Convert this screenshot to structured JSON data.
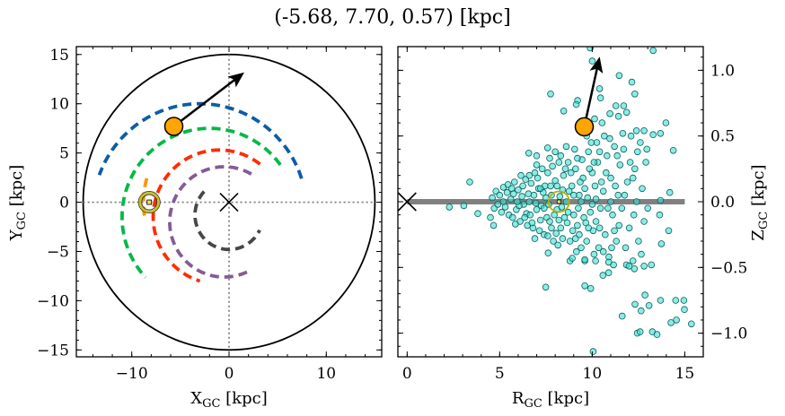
{
  "chart_data": [
    {
      "type": "line",
      "panel": "left",
      "title": "(-5.68, 7.70, 0.57) [kpc]",
      "xlabel": {
        "main": "X",
        "sub": "GC",
        "unit": " [kpc]"
      },
      "ylabel": {
        "main": "Y",
        "sub": "GC",
        "unit": " [kpc]"
      },
      "xlim": [
        -15.7,
        15.7
      ],
      "ylim": [
        -15.7,
        15.8
      ],
      "xticks": [
        -10,
        0,
        10
      ],
      "xtick_labels": [
        "−10",
        "0",
        "10"
      ],
      "yticks": [
        15,
        10,
        5,
        0,
        -5,
        -10,
        -15
      ],
      "ytick_labels": [
        "15",
        "10",
        "5",
        "0",
        "−5",
        "−10",
        "−15"
      ],
      "grid": false,
      "boundary_circle_radius": 15,
      "galactic_center": [
        0,
        0
      ],
      "sun_position": [
        -8.2,
        0
      ],
      "object_position": [
        -5.68,
        7.7
      ],
      "velocity_arrow_tip": [
        1.2,
        12.9
      ],
      "orbits": [
        {
          "color": "#0C5DA5",
          "center": [
            -3,
            -1
          ],
          "radius": 11,
          "angle_start": 18,
          "angle_end": 160
        },
        {
          "color": "#00B945",
          "center": [
            -2,
            -1.5
          ],
          "radius": 9,
          "angle_start": 36,
          "angle_end": 223
        },
        {
          "color": "#FF2C00",
          "center": [
            -1,
            -1.5
          ],
          "radius": 6.8,
          "angle_start": 52,
          "angle_end": 253
        },
        {
          "color": "#845B97",
          "center": [
            -0.5,
            -2
          ],
          "radius": 5.6,
          "angle_start": 60,
          "angle_end": 300
        },
        {
          "color": "#474747",
          "center": [
            0,
            -1.3
          ],
          "radius": 3.5,
          "angle_start": 137,
          "angle_end": 334
        },
        {
          "color": "#FF9500",
          "center": [
            0,
            0
          ],
          "radius": 8.8,
          "angle_start": 164,
          "angle_end": 190
        }
      ]
    },
    {
      "type": "scatter",
      "panel": "right",
      "xlabel": {
        "main": "R",
        "sub": "GC",
        "unit": " [kpc]"
      },
      "ylabel": {
        "main": "Z",
        "sub": "GC",
        "unit": " [kpc]"
      },
      "xlim": [
        -0.5,
        16.0
      ],
      "ylim": [
        -1.18,
        1.18
      ],
      "xticks": [
        0,
        5,
        10,
        15
      ],
      "xtick_labels": [
        "0",
        "5",
        "10",
        "15"
      ],
      "yticks": [
        1.0,
        0.5,
        0.0,
        -0.5,
        -1.0
      ],
      "ytick_labels": [
        "1.0",
        "0.5",
        "0.0",
        "−0.5",
        "−1.0"
      ],
      "yaxis_side": "right",
      "grid": false,
      "disk_line": {
        "x": [
          0,
          15
        ],
        "y": 0,
        "color": "#808080"
      },
      "galactic_center": [
        0,
        0
      ],
      "sun_position": [
        8.2,
        0
      ],
      "object_position": [
        9.57,
        0.57
      ],
      "velocity_arrow_tip": [
        10.35,
        1.07
      ],
      "marker_color": "#40E0D0",
      "marker_edge": "#0B5F5F",
      "points": [
        [
          4.6,
          0.03
        ],
        [
          4.7,
          -0.05
        ],
        [
          4.8,
          0.08
        ],
        [
          4.9,
          -0.02
        ],
        [
          5.0,
          0.05
        ],
        [
          5.1,
          -0.08
        ],
        [
          5.2,
          0.11
        ],
        [
          5.3,
          -0.04
        ],
        [
          5.4,
          0.07
        ],
        [
          5.5,
          -0.1
        ],
        [
          4.5,
          -0.12
        ],
        [
          5.2,
          0.0
        ],
        [
          5.45,
          0.13
        ],
        [
          5.6,
          0.02
        ],
        [
          5.7,
          -0.12
        ],
        [
          5.8,
          0.15
        ],
        [
          5.9,
          -0.06
        ],
        [
          6.0,
          0.09
        ],
        [
          6.1,
          -0.15
        ],
        [
          6.2,
          0.04
        ],
        [
          6.3,
          -0.02
        ],
        [
          6.4,
          0.17
        ],
        [
          6.5,
          -0.18
        ],
        [
          5.65,
          0.1
        ],
        [
          5.85,
          -0.17
        ],
        [
          6.05,
          -0.03
        ],
        [
          6.25,
          0.12
        ],
        [
          6.45,
          -0.09
        ],
        [
          6.15,
          0.2
        ],
        [
          5.95,
          0.0
        ],
        [
          6.35,
          -0.12
        ],
        [
          5.75,
          0.06
        ],
        [
          6.55,
          0.06
        ],
        [
          6.6,
          0.0
        ],
        [
          6.7,
          0.14
        ],
        [
          6.8,
          -0.2
        ],
        [
          6.9,
          0.22
        ],
        [
          7.0,
          -0.06
        ],
        [
          7.1,
          0.1
        ],
        [
          7.2,
          -0.14
        ],
        [
          7.3,
          0.25
        ],
        [
          7.4,
          -0.25
        ],
        [
          7.5,
          0.03
        ],
        [
          6.65,
          -0.1
        ],
        [
          6.85,
          0.05
        ],
        [
          7.05,
          0.18
        ],
        [
          7.25,
          -0.03
        ],
        [
          7.45,
          0.12
        ],
        [
          6.75,
          -0.16
        ],
        [
          6.95,
          -0.01
        ],
        [
          7.15,
          -0.22
        ],
        [
          7.35,
          0.07
        ],
        [
          7.55,
          -0.12
        ],
        [
          6.6,
          0.2
        ],
        [
          7.0,
          0.28
        ],
        [
          7.2,
          0.1
        ],
        [
          7.4,
          -0.05
        ],
        [
          6.9,
          -0.28
        ],
        [
          7.6,
          0.22
        ],
        [
          7.7,
          -0.15
        ],
        [
          7.8,
          0.05
        ],
        [
          7.9,
          -0.3
        ],
        [
          8.0,
          0.16
        ],
        [
          8.1,
          -0.06
        ],
        [
          8.2,
          0.3
        ],
        [
          8.3,
          -0.2
        ],
        [
          8.4,
          0.09
        ],
        [
          8.5,
          -0.12
        ],
        [
          7.65,
          -0.02
        ],
        [
          7.85,
          0.27
        ],
        [
          8.05,
          -0.24
        ],
        [
          8.25,
          0.04
        ],
        [
          8.45,
          0.2
        ],
        [
          7.75,
          0.12
        ],
        [
          7.95,
          -0.1
        ],
        [
          8.15,
          -0.33
        ],
        [
          8.35,
          -0.04
        ],
        [
          8.55,
          0.25
        ],
        [
          7.6,
          -0.26
        ],
        [
          8.0,
          0.38
        ],
        [
          8.2,
          -0.14
        ],
        [
          8.4,
          -0.28
        ],
        [
          7.8,
          -0.2
        ],
        [
          8.1,
          0.12
        ],
        [
          8.3,
          0.35
        ],
        [
          7.7,
          0.33
        ],
        [
          8.6,
          0.0
        ],
        [
          8.7,
          0.3
        ],
        [
          8.8,
          -0.3
        ],
        [
          8.9,
          0.12
        ],
        [
          9.0,
          -0.1
        ],
        [
          9.1,
          0.25
        ],
        [
          9.2,
          -0.18
        ],
        [
          9.3,
          0.05
        ],
        [
          9.4,
          -0.35
        ],
        [
          9.5,
          0.18
        ],
        [
          8.65,
          -0.16
        ],
        [
          8.85,
          0.22
        ],
        [
          9.05,
          0.4
        ],
        [
          9.25,
          -0.05
        ],
        [
          9.45,
          0.32
        ],
        [
          8.75,
          0.08
        ],
        [
          8.95,
          -0.22
        ],
        [
          9.15,
          -0.38
        ],
        [
          9.35,
          0.15
        ],
        [
          9.55,
          -0.12
        ],
        [
          8.6,
          0.42
        ],
        [
          8.8,
          -0.45
        ],
        [
          9.0,
          0.05
        ],
        [
          9.2,
          0.33
        ],
        [
          9.4,
          0.0
        ],
        [
          9.1,
          -0.28
        ],
        [
          8.7,
          -0.08
        ],
        [
          9.3,
          -0.25
        ],
        [
          9.6,
          0.1
        ],
        [
          9.7,
          -0.3
        ],
        [
          9.8,
          0.38
        ],
        [
          9.9,
          -0.08
        ],
        [
          10.0,
          0.22
        ],
        [
          10.1,
          -0.4
        ],
        [
          10.2,
          0.02
        ],
        [
          10.3,
          0.3
        ],
        [
          10.4,
          -0.2
        ],
        [
          10.5,
          0.15
        ],
        [
          9.65,
          -0.16
        ],
        [
          9.85,
          0.25
        ],
        [
          10.05,
          -0.22
        ],
        [
          10.25,
          0.45
        ],
        [
          10.45,
          -0.05
        ],
        [
          9.75,
          0.03
        ],
        [
          9.95,
          0.45
        ],
        [
          10.15,
          0.12
        ],
        [
          10.35,
          -0.35
        ],
        [
          9.6,
          -0.45
        ],
        [
          10.0,
          -0.02
        ],
        [
          10.2,
          -0.15
        ],
        [
          10.4,
          0.38
        ],
        [
          9.8,
          -0.2
        ],
        [
          10.1,
          0.3
        ],
        [
          9.7,
          0.5
        ],
        [
          10.6,
          0.08
        ],
        [
          10.7,
          -0.25
        ],
        [
          10.8,
          0.35
        ],
        [
          10.9,
          -0.42
        ],
        [
          11.0,
          0.18
        ],
        [
          11.1,
          -0.1
        ],
        [
          11.2,
          0.42
        ],
        [
          11.3,
          -0.3
        ],
        [
          11.4,
          0.05
        ],
        [
          11.5,
          0.28
        ],
        [
          10.65,
          0.5
        ],
        [
          10.85,
          -0.05
        ],
        [
          11.05,
          -0.35
        ],
        [
          11.25,
          0.12
        ],
        [
          11.45,
          -0.18
        ],
        [
          10.75,
          0.22
        ],
        [
          10.95,
          0.48
        ],
        [
          11.15,
          -0.48
        ],
        [
          11.35,
          0.35
        ],
        [
          10.6,
          -0.38
        ],
        [
          11.0,
          0.0
        ],
        [
          11.2,
          -0.22
        ],
        [
          11.6,
          -0.05
        ],
        [
          11.7,
          0.4
        ],
        [
          11.8,
          -0.35
        ],
        [
          11.9,
          0.15
        ],
        [
          12.0,
          -0.2
        ],
        [
          12.1,
          0.5
        ],
        [
          12.2,
          -0.45
        ],
        [
          12.3,
          0.25
        ],
        [
          12.4,
          0.0
        ],
        [
          12.5,
          -0.3
        ],
        [
          12.6,
          0.45
        ],
        [
          12.7,
          0.1
        ],
        [
          12.8,
          -0.15
        ],
        [
          11.65,
          0.52
        ],
        [
          11.85,
          -0.48
        ],
        [
          12.05,
          0.3
        ],
        [
          12.25,
          -0.1
        ],
        [
          12.45,
          0.38
        ],
        [
          12.65,
          -0.4
        ],
        [
          12.2,
          0.18
        ],
        [
          11.75,
          0.05
        ],
        [
          12.9,
          0.3
        ],
        [
          13.0,
          -0.05
        ],
        [
          12.95,
          0.4
        ],
        [
          9.89,
          1.17
        ],
        [
          13.29,
          1.15
        ],
        [
          10.0,
          1.07
        ],
        [
          11.46,
          0.96
        ],
        [
          12.14,
          0.91
        ],
        [
          7.75,
          0.82
        ],
        [
          10.4,
          0.86
        ],
        [
          10.45,
          0.79
        ],
        [
          12.3,
          0.82
        ],
        [
          9.21,
          0.77
        ],
        [
          9.14,
          0.74
        ],
        [
          8.46,
          0.69
        ],
        [
          11.28,
          0.73
        ],
        [
          11.7,
          0.73
        ],
        [
          11.86,
          0.68
        ],
        [
          11.42,
          0.65
        ],
        [
          10.96,
          0.67
        ],
        [
          10.13,
          0.63
        ],
        [
          10.53,
          0.6
        ],
        [
          13.98,
          0.6
        ],
        [
          13.69,
          0.52
        ],
        [
          12.39,
          0.54
        ],
        [
          12.8,
          0.54
        ],
        [
          13.29,
          0.51
        ],
        [
          14.38,
          0.39
        ],
        [
          6.57,
          0.37
        ],
        [
          7.0,
          0.35
        ],
        [
          7.59,
          0.41
        ],
        [
          3.38,
          0.15
        ],
        [
          2.28,
          -0.04
        ],
        [
          3.06,
          -0.03
        ],
        [
          3.82,
          -0.09
        ],
        [
          4.67,
          -0.18
        ],
        [
          14.19,
          0.07
        ],
        [
          13.69,
          0.01
        ],
        [
          14.13,
          -0.22
        ],
        [
          13.74,
          -0.32
        ],
        [
          13.64,
          -0.1
        ],
        [
          13.2,
          -0.48
        ],
        [
          12.8,
          -0.49
        ],
        [
          12.28,
          -0.51
        ],
        [
          11.99,
          -0.49
        ],
        [
          10.58,
          -0.56
        ],
        [
          10.89,
          -0.54
        ],
        [
          10.18,
          -0.45
        ],
        [
          10.89,
          -0.46
        ],
        [
          9.6,
          -0.44
        ],
        [
          8.92,
          -0.43
        ],
        [
          7.62,
          -0.39
        ],
        [
          7.49,
          -0.65
        ],
        [
          9.6,
          -0.64
        ],
        [
          9.92,
          -0.66
        ],
        [
          12.85,
          -0.71
        ],
        [
          12.31,
          -0.78
        ],
        [
          12.64,
          -0.83
        ],
        [
          13.07,
          -0.79
        ],
        [
          11.62,
          -0.87
        ],
        [
          13.69,
          -0.75
        ],
        [
          14.51,
          -0.75
        ],
        [
          14.95,
          -0.75
        ],
        [
          14.98,
          -0.82
        ],
        [
          14.55,
          -0.9
        ],
        [
          14.26,
          -0.92
        ],
        [
          15.36,
          -0.93
        ],
        [
          12.44,
          -1.0
        ],
        [
          12.59,
          -0.99
        ],
        [
          13.25,
          -0.99
        ],
        [
          13.5,
          -1.01
        ],
        [
          10.05,
          -1.14
        ]
      ]
    }
  ],
  "colors": {
    "object": "#FFA500",
    "sun_ring": "#C8C020",
    "axis": "#000000",
    "crosshair": "#777777"
  }
}
